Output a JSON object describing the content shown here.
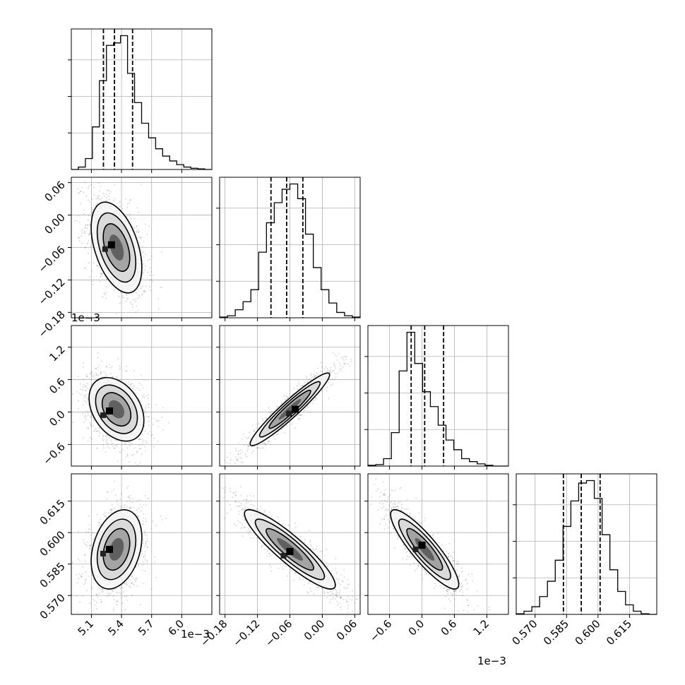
{
  "chart_data": {
    "type": "corner",
    "grid": true,
    "variables": [
      {
        "range": [
          4.9,
          6.3
        ],
        "ticks": [
          5.1,
          5.4,
          5.7,
          6.0
        ],
        "tick_labels": [
          "5.1",
          "5.4",
          "5.7",
          "6.0"
        ],
        "offset_label": "1e−3",
        "quantiles": [
          5.22,
          5.33,
          5.51
        ],
        "hist": [
          0,
          4,
          18,
          70,
          146,
          204,
          208,
          220,
          158,
          110,
          76,
          52,
          34,
          22,
          14,
          8,
          4,
          2,
          1,
          0
        ]
      },
      {
        "range": [
          -0.19,
          0.07
        ],
        "ticks": [
          -0.18,
          -0.12,
          -0.06,
          0.0,
          0.06
        ],
        "tick_labels": [
          "−0.18",
          "−0.12",
          "−0.06",
          "0.00",
          "0.06"
        ],
        "offset_label": "1e−3",
        "quantiles": [
          -0.095,
          -0.066,
          -0.036
        ],
        "hist": [
          1,
          3,
          12,
          24,
          42,
          98,
          142,
          172,
          192,
          200,
          178,
          125,
          75,
          42,
          22,
          8,
          3,
          1
        ]
      },
      {
        "range": [
          -1.0,
          1.6
        ],
        "ticks": [
          -0.6,
          0.0,
          0.6,
          1.2
        ],
        "tick_labels": [
          "−0.6",
          "0.0",
          "0.6",
          "1.2"
        ],
        "offset_label": "1e−3",
        "quantiles": [
          -0.2,
          0.05,
          0.4
        ],
        "hist": [
          1,
          2,
          10,
          45,
          128,
          180,
          138,
          100,
          80,
          55,
          35,
          22,
          10,
          6,
          3,
          1,
          0,
          0
        ]
      },
      {
        "range": [
          0.561,
          0.628
        ],
        "ticks": [
          0.57,
          0.585,
          0.6,
          0.615
        ],
        "tick_labels": [
          "0.570",
          "0.585",
          "0.600",
          "0.615"
        ],
        "offset_label": "",
        "quantiles": [
          0.5835,
          0.592,
          0.601
        ],
        "hist": [
          1,
          5,
          12,
          28,
          52,
          85,
          138,
          178,
          206,
          210,
          182,
          125,
          70,
          36,
          15,
          5,
          1,
          0
        ]
      }
    ],
    "pairs": [
      {
        "x_var": 0,
        "y_var": 1,
        "mean": [
          5.35,
          -0.06
        ],
        "sd": [
          0.12,
          0.04
        ],
        "rho": -0.45,
        "peak": [
          5.3,
          -0.055
        ]
      },
      {
        "x_var": 0,
        "y_var": 2,
        "mean": [
          5.35,
          0.05
        ],
        "sd": [
          0.13,
          0.28
        ],
        "rho": -0.35,
        "peak": [
          5.28,
          0.02
        ]
      },
      {
        "x_var": 1,
        "y_var": 2,
        "mean": [
          -0.06,
          0.05
        ],
        "sd": [
          0.035,
          0.32
        ],
        "rho": 0.95,
        "peak": [
          -0.05,
          0.05
        ]
      },
      {
        "x_var": 0,
        "y_var": 3,
        "mean": [
          5.35,
          0.592
        ],
        "sd": [
          0.12,
          0.009
        ],
        "rho": 0.3,
        "peak": [
          5.28,
          0.592
        ]
      },
      {
        "x_var": 1,
        "y_var": 3,
        "mean": [
          -0.06,
          0.592
        ],
        "sd": [
          0.04,
          0.009
        ],
        "rho": -0.9,
        "peak": [
          -0.06,
          0.591
        ]
      },
      {
        "x_var": 2,
        "y_var": 3,
        "mean": [
          0.05,
          0.592
        ],
        "sd": [
          0.3,
          0.009
        ],
        "rho": -0.88,
        "peak": [
          0.0,
          0.594
        ]
      }
    ]
  }
}
